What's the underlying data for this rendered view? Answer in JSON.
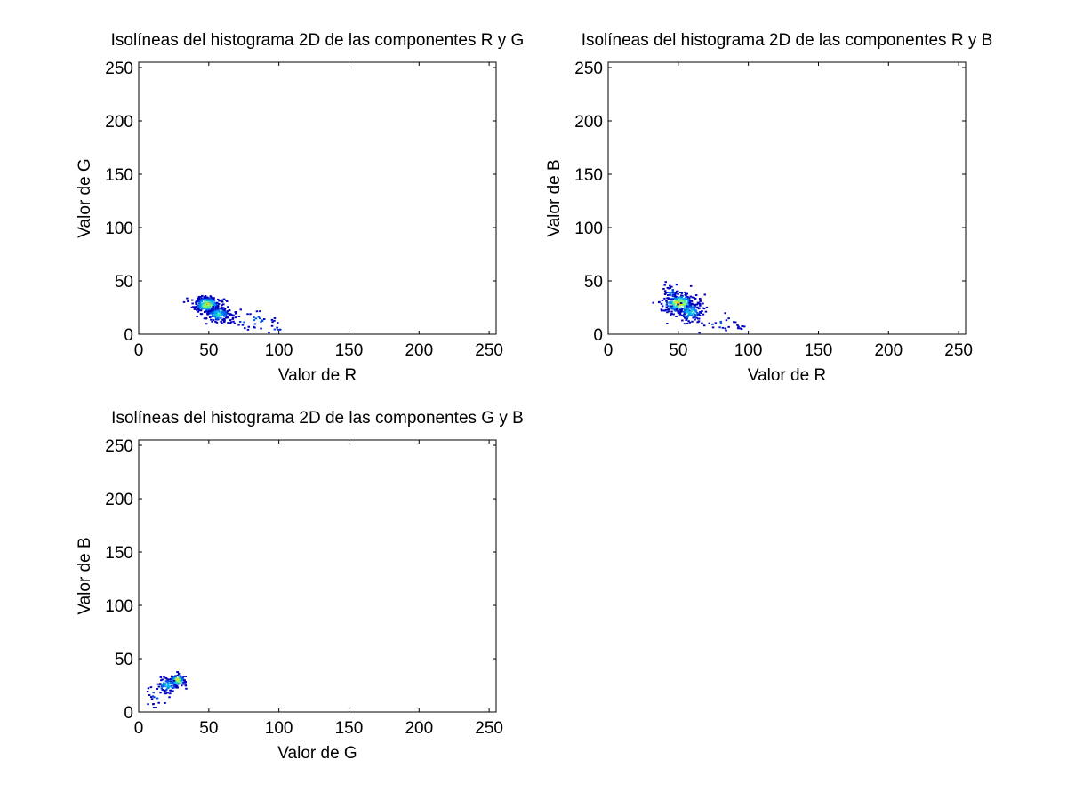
{
  "chart_data": [
    {
      "type": "heatmap",
      "title": "Isolíneas del histograma 2D de las componentes R y G",
      "xlabel": "Valor de R",
      "ylabel": "Valor de G",
      "xlim": [
        0,
        255
      ],
      "ylim": [
        0,
        255
      ],
      "xticks": [
        0,
        50,
        100,
        150,
        200,
        250
      ],
      "yticks": [
        0,
        50,
        100,
        150,
        200,
        250
      ],
      "grid": false,
      "clusters": [
        {
          "x": 48,
          "y": 27,
          "sx": 5,
          "sy": 4,
          "peak": 1.0,
          "count": 260
        },
        {
          "x": 56,
          "y": 18,
          "sx": 5,
          "sy": 4,
          "peak": 0.55,
          "count": 140
        },
        {
          "x": 80,
          "y": 12,
          "sx": 12,
          "sy": 5,
          "peak": 0.25,
          "count": 40
        },
        {
          "x": 98,
          "y": 4,
          "sx": 3,
          "sy": 2,
          "peak": 0.2,
          "count": 6
        }
      ]
    },
    {
      "type": "heatmap",
      "title": "Isolíneas del histograma 2D de las componentes R y B",
      "xlabel": "Valor de R",
      "ylabel": "Valor de B",
      "xlim": [
        0,
        255
      ],
      "ylim": [
        0,
        255
      ],
      "xticks": [
        0,
        50,
        100,
        150,
        200,
        250
      ],
      "yticks": [
        0,
        50,
        100,
        150,
        200,
        250
      ],
      "grid": false,
      "clusters": [
        {
          "x": 50,
          "y": 28,
          "sx": 6,
          "sy": 5,
          "peak": 1.0,
          "count": 260
        },
        {
          "x": 58,
          "y": 20,
          "sx": 5,
          "sy": 5,
          "peak": 0.5,
          "count": 120
        },
        {
          "x": 44,
          "y": 38,
          "sx": 3,
          "sy": 4,
          "peak": 0.3,
          "count": 30
        },
        {
          "x": 80,
          "y": 8,
          "sx": 10,
          "sy": 4,
          "peak": 0.2,
          "count": 30
        }
      ]
    },
    {
      "type": "heatmap",
      "title": "Isolíneas del histograma 2D de las componentes G y B",
      "xlabel": "Valor de G",
      "ylabel": "Valor de B",
      "xlim": [
        0,
        255
      ],
      "ylim": [
        0,
        255
      ],
      "xticks": [
        0,
        50,
        100,
        150,
        200,
        250
      ],
      "yticks": [
        0,
        50,
        100,
        150,
        200,
        250
      ],
      "grid": false,
      "clusters": [
        {
          "x": 27,
          "y": 29,
          "sx": 3,
          "sy": 3,
          "peak": 1.0,
          "count": 110
        },
        {
          "x": 20,
          "y": 24,
          "sx": 4,
          "sy": 4,
          "peak": 0.5,
          "count": 60
        },
        {
          "x": 12,
          "y": 15,
          "sx": 4,
          "sy": 6,
          "peak": 0.25,
          "count": 20
        }
      ]
    }
  ]
}
